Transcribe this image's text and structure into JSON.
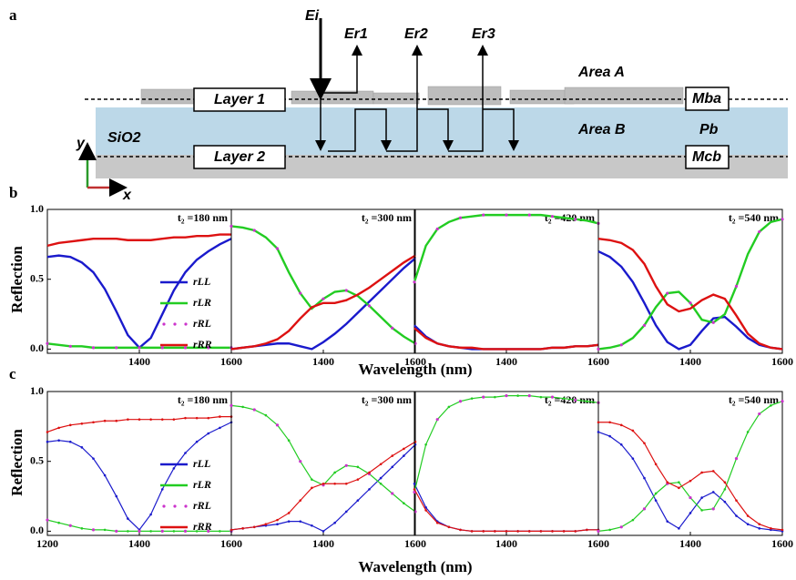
{
  "diagram": {
    "label": "a",
    "incident": "Ei",
    "reflected": [
      "Er1",
      "Er2",
      "Er3"
    ],
    "area_a": "Area A",
    "area_b": "Area B",
    "layer1": "Layer 1",
    "layer2": "Layer 2",
    "substrate": "SiO2",
    "m_ba": "Mba",
    "p_b": "Pb",
    "m_cb": "Mcb",
    "axis_y": "y",
    "axis_x": "x"
  },
  "rows": [
    {
      "label": "b",
      "ylabel": "Reflection",
      "xlabel": "Wavelength (nm)"
    },
    {
      "label": "c",
      "ylabel": "Reflection",
      "xlabel": "Wavelength (nm)"
    }
  ],
  "chart_data": [
    {
      "type": "line",
      "annotation": "t₂ =180 nm",
      "x": [
        1200,
        1225,
        1250,
        1275,
        1300,
        1325,
        1350,
        1375,
        1400,
        1425,
        1450,
        1475,
        1500,
        1525,
        1550,
        1575,
        1600
      ],
      "xlim": [
        1200,
        1600
      ],
      "xticks": [
        1400,
        1600
      ],
      "ylim": [
        -0.03,
        1
      ],
      "yticks": [
        {
          "value": 0,
          "label": "0.0"
        },
        {
          "value": 0.5,
          "label": "0.5"
        },
        {
          "value": 1,
          "label": "1.0"
        }
      ],
      "legend": "right",
      "markers": false,
      "series": [
        {
          "name": "rLL",
          "color": "#1a1acc",
          "values": [
            0.66,
            0.67,
            0.66,
            0.62,
            0.55,
            0.43,
            0.27,
            0.1,
            0.01,
            0.08,
            0.25,
            0.42,
            0.55,
            0.64,
            0.7,
            0.75,
            0.79
          ]
        },
        {
          "name": "rLR",
          "color": "#22cc22",
          "values": [
            0.04,
            0.03,
            0.02,
            0.02,
            0.01,
            0.01,
            0.01,
            0.01,
            0.01,
            0.01,
            0.01,
            0.01,
            0.01,
            0.01,
            0.01,
            0.01,
            0.01
          ]
        },
        {
          "name": "rRL",
          "color": "#cc33cc",
          "style": "dots",
          "values": [
            0.04,
            0.03,
            0.02,
            0.02,
            0.01,
            0.01,
            0.01,
            0.01,
            0.01,
            0.01,
            0.01,
            0.01,
            0.01,
            0.01,
            0.01,
            0.01,
            0.01
          ]
        },
        {
          "name": "rRR",
          "color": "#dd1111",
          "values": [
            0.74,
            0.76,
            0.77,
            0.78,
            0.79,
            0.79,
            0.79,
            0.78,
            0.78,
            0.78,
            0.79,
            0.8,
            0.8,
            0.81,
            0.81,
            0.82,
            0.82
          ]
        }
      ]
    },
    {
      "type": "line",
      "annotation": "t₂ =300 nm",
      "x": [
        1200,
        1225,
        1250,
        1275,
        1300,
        1325,
        1350,
        1375,
        1400,
        1425,
        1450,
        1475,
        1500,
        1525,
        1550,
        1575,
        1600
      ],
      "xlim": [
        1200,
        1600
      ],
      "xticks": [
        1400,
        1600
      ],
      "ylim": [
        -0.03,
        1
      ],
      "markers": false,
      "series": [
        {
          "name": "rLL",
          "color": "#1a1acc",
          "values": [
            0.0,
            0.01,
            0.02,
            0.03,
            0.04,
            0.04,
            0.02,
            0.0,
            0.05,
            0.11,
            0.18,
            0.26,
            0.34,
            0.42,
            0.5,
            0.58,
            0.65
          ]
        },
        {
          "name": "rLR",
          "color": "#22cc22",
          "values": [
            0.88,
            0.87,
            0.85,
            0.8,
            0.72,
            0.55,
            0.4,
            0.29,
            0.36,
            0.41,
            0.42,
            0.38,
            0.31,
            0.23,
            0.15,
            0.09,
            0.04
          ]
        },
        {
          "name": "rRL",
          "color": "#cc33cc",
          "style": "dots",
          "values": [
            0.88,
            0.87,
            0.85,
            0.8,
            0.72,
            0.55,
            0.4,
            0.29,
            0.36,
            0.41,
            0.42,
            0.38,
            0.31,
            0.23,
            0.15,
            0.09,
            0.04
          ]
        },
        {
          "name": "rRR",
          "color": "#dd1111",
          "values": [
            0.0,
            0.01,
            0.02,
            0.04,
            0.07,
            0.13,
            0.22,
            0.3,
            0.33,
            0.33,
            0.35,
            0.39,
            0.44,
            0.5,
            0.56,
            0.62,
            0.67
          ]
        }
      ]
    },
    {
      "type": "line",
      "annotation": "t₂ =420 nm",
      "x": [
        1200,
        1225,
        1250,
        1275,
        1300,
        1325,
        1350,
        1375,
        1400,
        1425,
        1450,
        1475,
        1500,
        1525,
        1550,
        1575,
        1600
      ],
      "xlim": [
        1200,
        1600
      ],
      "xticks": [
        1400,
        1600
      ],
      "ylim": [
        -0.03,
        1
      ],
      "markers": false,
      "series": [
        {
          "name": "rLL",
          "color": "#1a1acc",
          "values": [
            0.17,
            0.09,
            0.04,
            0.02,
            0.01,
            0.0,
            0.0,
            0.0,
            0.0,
            0.0,
            0.0,
            0.0,
            0.01,
            0.01,
            0.02,
            0.02,
            0.03
          ]
        },
        {
          "name": "rLR",
          "color": "#22cc22",
          "values": [
            0.48,
            0.74,
            0.86,
            0.91,
            0.94,
            0.95,
            0.96,
            0.96,
            0.96,
            0.96,
            0.96,
            0.96,
            0.95,
            0.94,
            0.93,
            0.92,
            0.9
          ]
        },
        {
          "name": "rRL",
          "color": "#cc33cc",
          "style": "dots",
          "values": [
            0.48,
            0.74,
            0.86,
            0.91,
            0.94,
            0.95,
            0.96,
            0.96,
            0.96,
            0.96,
            0.96,
            0.96,
            0.95,
            0.94,
            0.93,
            0.92,
            0.9
          ]
        },
        {
          "name": "rRR",
          "color": "#dd1111",
          "values": [
            0.15,
            0.08,
            0.04,
            0.02,
            0.01,
            0.01,
            0.0,
            0.0,
            0.0,
            0.0,
            0.0,
            0.0,
            0.01,
            0.01,
            0.02,
            0.02,
            0.03
          ]
        }
      ]
    },
    {
      "type": "line",
      "annotation": "t₂ =540 nm",
      "x": [
        1200,
        1225,
        1250,
        1275,
        1300,
        1325,
        1350,
        1375,
        1400,
        1425,
        1450,
        1475,
        1500,
        1525,
        1550,
        1575,
        1600
      ],
      "xlim": [
        1200,
        1600
      ],
      "xticks": [
        1400,
        1600
      ],
      "ylim": [
        -0.03,
        1
      ],
      "markers": false,
      "series": [
        {
          "name": "rLL",
          "color": "#1a1acc",
          "values": [
            0.7,
            0.66,
            0.59,
            0.48,
            0.33,
            0.17,
            0.05,
            0.0,
            0.03,
            0.13,
            0.22,
            0.23,
            0.16,
            0.08,
            0.03,
            0.01,
            0.0
          ]
        },
        {
          "name": "rLR",
          "color": "#22cc22",
          "values": [
            0.0,
            0.01,
            0.03,
            0.08,
            0.17,
            0.3,
            0.4,
            0.41,
            0.33,
            0.21,
            0.19,
            0.25,
            0.45,
            0.68,
            0.84,
            0.91,
            0.93
          ]
        },
        {
          "name": "rRL",
          "color": "#cc33cc",
          "style": "dots",
          "values": [
            0.0,
            0.01,
            0.03,
            0.08,
            0.17,
            0.3,
            0.4,
            0.41,
            0.33,
            0.21,
            0.19,
            0.25,
            0.45,
            0.68,
            0.84,
            0.91,
            0.93
          ]
        },
        {
          "name": "rRR",
          "color": "#dd1111",
          "values": [
            0.79,
            0.78,
            0.76,
            0.71,
            0.61,
            0.45,
            0.32,
            0.27,
            0.29,
            0.35,
            0.39,
            0.36,
            0.24,
            0.11,
            0.04,
            0.01,
            0.0
          ]
        }
      ]
    },
    {
      "type": "line",
      "annotation": "t₂ =180 nm",
      "x": [
        1200,
        1225,
        1250,
        1275,
        1300,
        1325,
        1350,
        1375,
        1400,
        1425,
        1450,
        1475,
        1500,
        1525,
        1550,
        1575,
        1600
      ],
      "xlim": [
        1200,
        1600
      ],
      "xticks": [
        1200,
        1400,
        1600
      ],
      "ylim": [
        -0.03,
        1
      ],
      "yticks": [
        {
          "value": 0,
          "label": "0.0"
        },
        {
          "value": 0.5,
          "label": "0.5"
        },
        {
          "value": 1,
          "label": "1.0"
        }
      ],
      "legend": "right",
      "markers": true,
      "series": [
        {
          "name": "rLL",
          "color": "#1a1acc",
          "values": [
            0.64,
            0.65,
            0.64,
            0.6,
            0.52,
            0.4,
            0.25,
            0.09,
            0.01,
            0.12,
            0.3,
            0.45,
            0.56,
            0.64,
            0.7,
            0.74,
            0.78
          ]
        },
        {
          "name": "rLR",
          "color": "#22cc22",
          "values": [
            0.08,
            0.06,
            0.04,
            0.02,
            0.01,
            0.01,
            0.0,
            0.0,
            0.0,
            0.0,
            0.0,
            0.0,
            0.0,
            0.0,
            0.0,
            0.0,
            0.0
          ]
        },
        {
          "name": "rRL",
          "color": "#cc33cc",
          "style": "dots",
          "values": [
            0.08,
            0.06,
            0.04,
            0.02,
            0.01,
            0.01,
            0.0,
            0.0,
            0.0,
            0.0,
            0.0,
            0.0,
            0.0,
            0.0,
            0.0,
            0.0,
            0.0
          ]
        },
        {
          "name": "rRR",
          "color": "#dd1111",
          "values": [
            0.71,
            0.74,
            0.76,
            0.77,
            0.78,
            0.79,
            0.79,
            0.8,
            0.8,
            0.8,
            0.8,
            0.8,
            0.81,
            0.81,
            0.81,
            0.82,
            0.82
          ]
        }
      ]
    },
    {
      "type": "line",
      "annotation": "t₂ =300 nm",
      "x": [
        1200,
        1225,
        1250,
        1275,
        1300,
        1325,
        1350,
        1375,
        1400,
        1425,
        1450,
        1475,
        1500,
        1525,
        1550,
        1575,
        1600
      ],
      "xlim": [
        1200,
        1600
      ],
      "xticks": [
        1400,
        1600
      ],
      "ylim": [
        -0.03,
        1
      ],
      "markers": true,
      "series": [
        {
          "name": "rLL",
          "color": "#1a1acc",
          "values": [
            0.01,
            0.02,
            0.03,
            0.04,
            0.05,
            0.07,
            0.07,
            0.04,
            0.0,
            0.06,
            0.14,
            0.22,
            0.3,
            0.38,
            0.46,
            0.54,
            0.62
          ]
        },
        {
          "name": "rLR",
          "color": "#22cc22",
          "values": [
            0.9,
            0.89,
            0.87,
            0.83,
            0.76,
            0.65,
            0.5,
            0.37,
            0.33,
            0.42,
            0.47,
            0.46,
            0.41,
            0.34,
            0.27,
            0.2,
            0.14
          ]
        },
        {
          "name": "rRL",
          "color": "#cc33cc",
          "style": "dots",
          "values": [
            0.9,
            0.89,
            0.87,
            0.83,
            0.76,
            0.65,
            0.5,
            0.37,
            0.33,
            0.42,
            0.47,
            0.46,
            0.41,
            0.34,
            0.27,
            0.2,
            0.14
          ]
        },
        {
          "name": "rRR",
          "color": "#dd1111",
          "values": [
            0.01,
            0.02,
            0.03,
            0.05,
            0.08,
            0.13,
            0.22,
            0.31,
            0.34,
            0.34,
            0.34,
            0.37,
            0.42,
            0.48,
            0.54,
            0.59,
            0.64
          ]
        }
      ]
    },
    {
      "type": "line",
      "annotation": "t₂ =420 nm",
      "x": [
        1200,
        1225,
        1250,
        1275,
        1300,
        1325,
        1350,
        1375,
        1400,
        1425,
        1450,
        1475,
        1500,
        1525,
        1550,
        1575,
        1600
      ],
      "xlim": [
        1200,
        1600
      ],
      "xticks": [
        1400,
        1600
      ],
      "ylim": [
        -0.03,
        1
      ],
      "markers": true,
      "series": [
        {
          "name": "rLL",
          "color": "#1a1acc",
          "values": [
            0.34,
            0.17,
            0.07,
            0.03,
            0.01,
            0.0,
            0.0,
            0.0,
            0.0,
            0.0,
            0.0,
            0.0,
            0.0,
            0.0,
            0.0,
            0.01,
            0.01
          ]
        },
        {
          "name": "rLR",
          "color": "#22cc22",
          "values": [
            0.28,
            0.62,
            0.8,
            0.89,
            0.93,
            0.95,
            0.96,
            0.96,
            0.97,
            0.97,
            0.97,
            0.96,
            0.96,
            0.95,
            0.94,
            0.93,
            0.92
          ]
        },
        {
          "name": "rRL",
          "color": "#cc33cc",
          "style": "dots",
          "values": [
            0.28,
            0.62,
            0.8,
            0.89,
            0.93,
            0.95,
            0.96,
            0.96,
            0.97,
            0.97,
            0.97,
            0.96,
            0.96,
            0.95,
            0.94,
            0.93,
            0.92
          ]
        },
        {
          "name": "rRR",
          "color": "#dd1111",
          "values": [
            0.3,
            0.15,
            0.06,
            0.03,
            0.01,
            0.0,
            0.0,
            0.0,
            0.0,
            0.0,
            0.0,
            0.0,
            0.0,
            0.0,
            0.0,
            0.01,
            0.01
          ]
        }
      ]
    },
    {
      "type": "line",
      "annotation": "t₂ =540 nm",
      "x": [
        1200,
        1225,
        1250,
        1275,
        1300,
        1325,
        1350,
        1375,
        1400,
        1425,
        1450,
        1475,
        1500,
        1525,
        1550,
        1575,
        1600
      ],
      "xlim": [
        1200,
        1600
      ],
      "xticks": [
        1400,
        1600
      ],
      "ylim": [
        -0.03,
        1
      ],
      "markers": true,
      "series": [
        {
          "name": "rLL",
          "color": "#1a1acc",
          "values": [
            0.71,
            0.68,
            0.62,
            0.52,
            0.38,
            0.22,
            0.07,
            0.02,
            0.13,
            0.24,
            0.28,
            0.21,
            0.11,
            0.05,
            0.02,
            0.01,
            0.0
          ]
        },
        {
          "name": "rLR",
          "color": "#22cc22",
          "values": [
            0.0,
            0.01,
            0.03,
            0.08,
            0.16,
            0.27,
            0.34,
            0.35,
            0.24,
            0.15,
            0.16,
            0.3,
            0.52,
            0.71,
            0.84,
            0.9,
            0.93
          ]
        },
        {
          "name": "rRL",
          "color": "#cc33cc",
          "style": "dots",
          "values": [
            0.0,
            0.01,
            0.03,
            0.08,
            0.16,
            0.27,
            0.34,
            0.35,
            0.24,
            0.15,
            0.16,
            0.3,
            0.52,
            0.71,
            0.84,
            0.9,
            0.93
          ]
        },
        {
          "name": "rRR",
          "color": "#dd1111",
          "values": [
            0.78,
            0.78,
            0.76,
            0.72,
            0.63,
            0.48,
            0.35,
            0.31,
            0.36,
            0.42,
            0.43,
            0.35,
            0.22,
            0.11,
            0.05,
            0.02,
            0.01
          ]
        }
      ]
    }
  ]
}
